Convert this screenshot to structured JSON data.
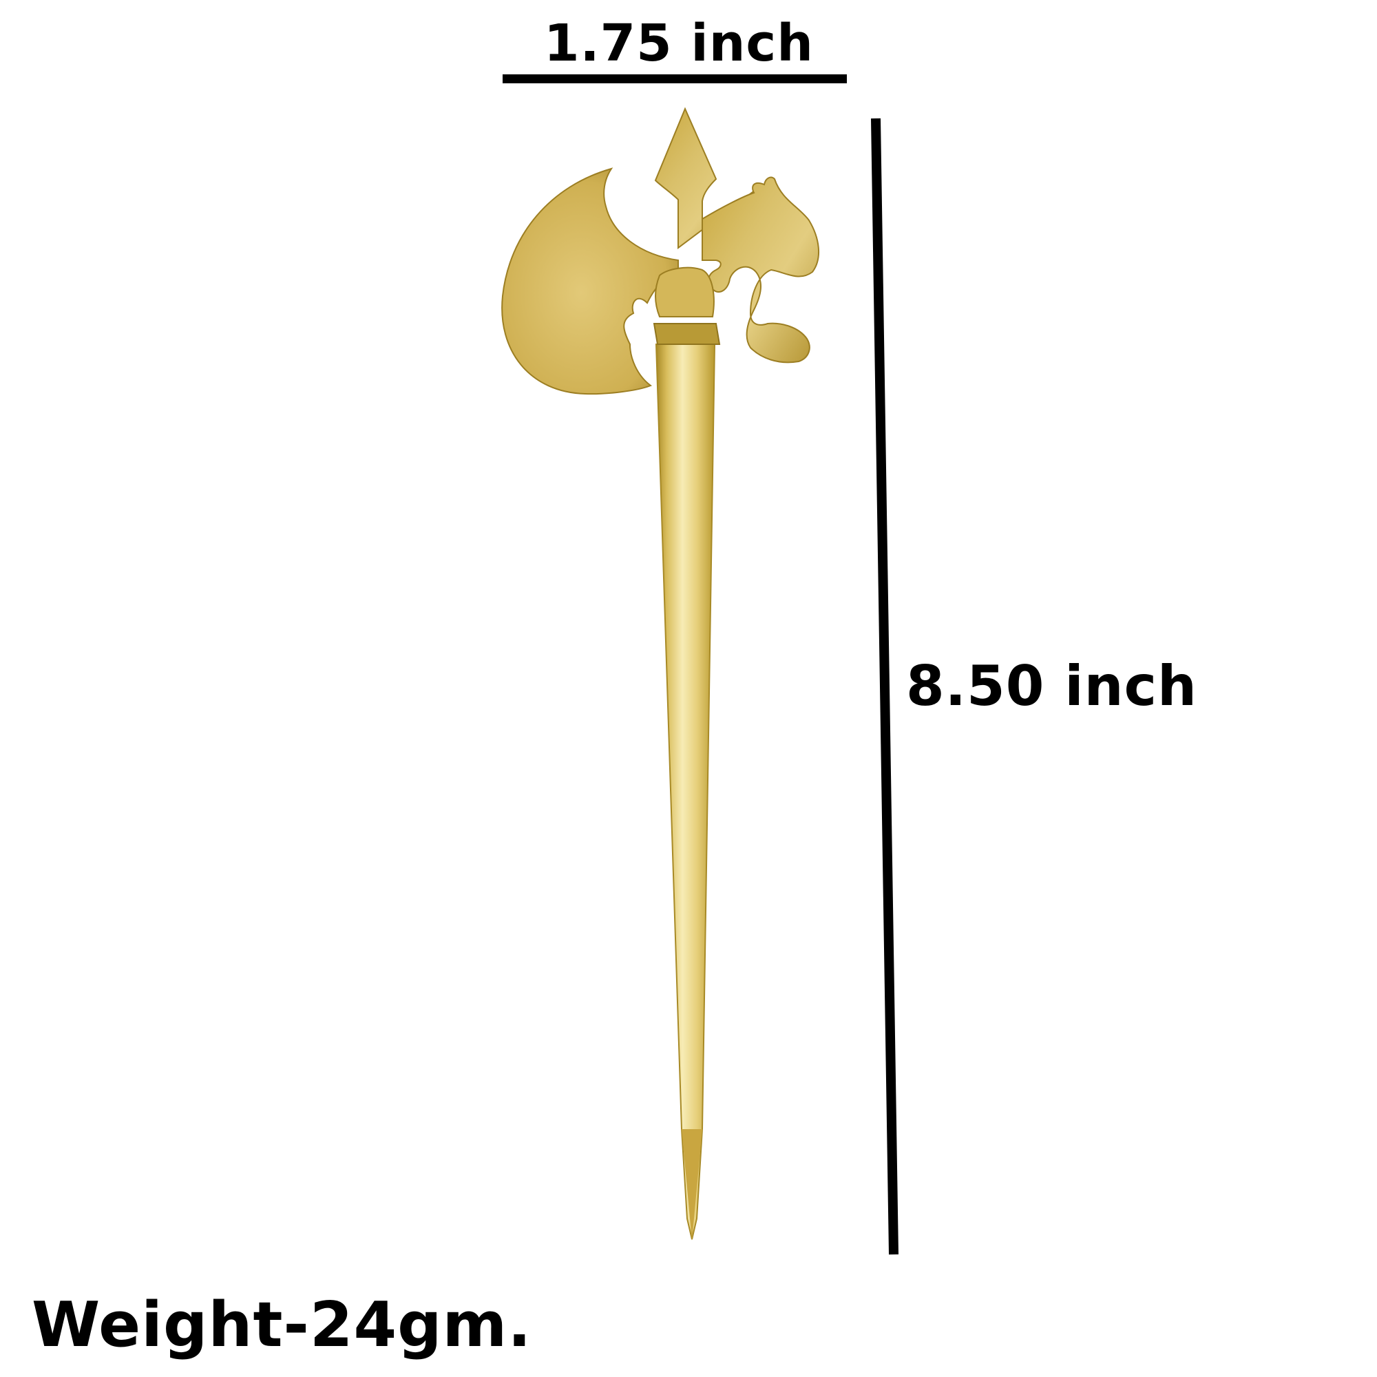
{
  "dimensions": {
    "width_label": "1.75 inch",
    "height_label": "8.50 inch"
  },
  "weight_label": "Weight-24gm.",
  "product": {
    "icon": "trident-axe-hair-stick-icon"
  },
  "colors": {
    "text": "#000000",
    "brass_light": "#f5e7a6",
    "brass_mid": "#d9bd5c",
    "brass_dark": "#a88a26",
    "background": "#ffffff"
  }
}
